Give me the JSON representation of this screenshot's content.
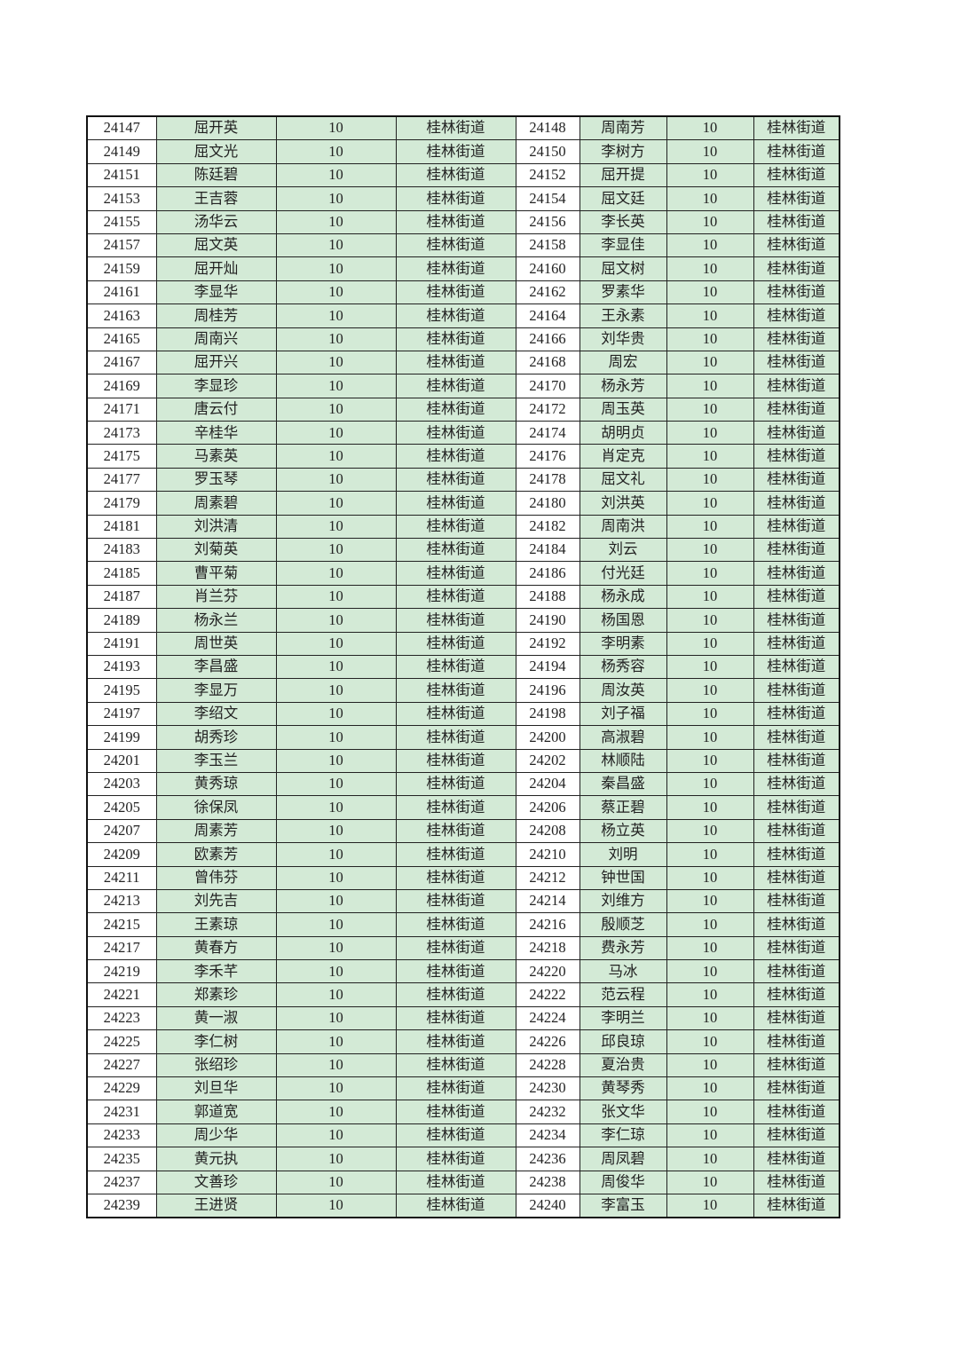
{
  "colors": {
    "cell_green": "#d3ead6",
    "cell_white": "#ffffff",
    "border": "#222222"
  },
  "rows": [
    {
      "left": [
        "24147",
        "屈开英",
        "10",
        "桂林街道"
      ],
      "right": [
        "24148",
        "周南芳",
        "10",
        "桂林街道"
      ]
    },
    {
      "left": [
        "24149",
        "屈文光",
        "10",
        "桂林街道"
      ],
      "right": [
        "24150",
        "李树方",
        "10",
        "桂林街道"
      ]
    },
    {
      "left": [
        "24151",
        "陈廷碧",
        "10",
        "桂林街道"
      ],
      "right": [
        "24152",
        "屈开提",
        "10",
        "桂林街道"
      ]
    },
    {
      "left": [
        "24153",
        "王吉蓉",
        "10",
        "桂林街道"
      ],
      "right": [
        "24154",
        "屈文廷",
        "10",
        "桂林街道"
      ]
    },
    {
      "left": [
        "24155",
        "汤华云",
        "10",
        "桂林街道"
      ],
      "right": [
        "24156",
        "李长英",
        "10",
        "桂林街道"
      ]
    },
    {
      "left": [
        "24157",
        "屈文英",
        "10",
        "桂林街道"
      ],
      "right": [
        "24158",
        "李显佳",
        "10",
        "桂林街道"
      ]
    },
    {
      "left": [
        "24159",
        "屈开灿",
        "10",
        "桂林街道"
      ],
      "right": [
        "24160",
        "屈文树",
        "10",
        "桂林街道"
      ]
    },
    {
      "left": [
        "24161",
        "李显华",
        "10",
        "桂林街道"
      ],
      "right": [
        "24162",
        "罗素华",
        "10",
        "桂林街道"
      ]
    },
    {
      "left": [
        "24163",
        "周桂芳",
        "10",
        "桂林街道"
      ],
      "right": [
        "24164",
        "王永素",
        "10",
        "桂林街道"
      ]
    },
    {
      "left": [
        "24165",
        "周南兴",
        "10",
        "桂林街道"
      ],
      "right": [
        "24166",
        "刘华贵",
        "10",
        "桂林街道"
      ]
    },
    {
      "left": [
        "24167",
        "屈开兴",
        "10",
        "桂林街道"
      ],
      "right": [
        "24168",
        "周宏",
        "10",
        "桂林街道"
      ]
    },
    {
      "left": [
        "24169",
        "李显珍",
        "10",
        "桂林街道"
      ],
      "right": [
        "24170",
        "杨永芳",
        "10",
        "桂林街道"
      ]
    },
    {
      "left": [
        "24171",
        "唐云付",
        "10",
        "桂林街道"
      ],
      "right": [
        "24172",
        "周玉英",
        "10",
        "桂林街道"
      ]
    },
    {
      "left": [
        "24173",
        "辛桂华",
        "10",
        "桂林街道"
      ],
      "right": [
        "24174",
        "胡明贞",
        "10",
        "桂林街道"
      ]
    },
    {
      "left": [
        "24175",
        "马素英",
        "10",
        "桂林街道"
      ],
      "right": [
        "24176",
        "肖定克",
        "10",
        "桂林街道"
      ]
    },
    {
      "left": [
        "24177",
        "罗玉琴",
        "10",
        "桂林街道"
      ],
      "right": [
        "24178",
        "屈文礼",
        "10",
        "桂林街道"
      ]
    },
    {
      "left": [
        "24179",
        "周素碧",
        "10",
        "桂林街道"
      ],
      "right": [
        "24180",
        "刘洪英",
        "10",
        "桂林街道"
      ]
    },
    {
      "left": [
        "24181",
        "刘洪清",
        "10",
        "桂林街道"
      ],
      "right": [
        "24182",
        "周南洪",
        "10",
        "桂林街道"
      ]
    },
    {
      "left": [
        "24183",
        "刘菊英",
        "10",
        "桂林街道"
      ],
      "right": [
        "24184",
        "刘云",
        "10",
        "桂林街道"
      ]
    },
    {
      "left": [
        "24185",
        "曹平菊",
        "10",
        "桂林街道"
      ],
      "right": [
        "24186",
        "付光廷",
        "10",
        "桂林街道"
      ]
    },
    {
      "left": [
        "24187",
        "肖兰芬",
        "10",
        "桂林街道"
      ],
      "right": [
        "24188",
        "杨永成",
        "10",
        "桂林街道"
      ]
    },
    {
      "left": [
        "24189",
        "杨永兰",
        "10",
        "桂林街道"
      ],
      "right": [
        "24190",
        "杨国恩",
        "10",
        "桂林街道"
      ]
    },
    {
      "left": [
        "24191",
        "周世英",
        "10",
        "桂林街道"
      ],
      "right": [
        "24192",
        "李明素",
        "10",
        "桂林街道"
      ]
    },
    {
      "left": [
        "24193",
        "李昌盛",
        "10",
        "桂林街道"
      ],
      "right": [
        "24194",
        "杨秀容",
        "10",
        "桂林街道"
      ]
    },
    {
      "left": [
        "24195",
        "李显万",
        "10",
        "桂林街道"
      ],
      "right": [
        "24196",
        "周汝英",
        "10",
        "桂林街道"
      ]
    },
    {
      "left": [
        "24197",
        "李绍文",
        "10",
        "桂林街道"
      ],
      "right": [
        "24198",
        "刘子福",
        "10",
        "桂林街道"
      ]
    },
    {
      "left": [
        "24199",
        "胡秀珍",
        "10",
        "桂林街道"
      ],
      "right": [
        "24200",
        "高淑碧",
        "10",
        "桂林街道"
      ]
    },
    {
      "left": [
        "24201",
        "李玉兰",
        "10",
        "桂林街道"
      ],
      "right": [
        "24202",
        "林顺陆",
        "10",
        "桂林街道"
      ]
    },
    {
      "left": [
        "24203",
        "黄秀琼",
        "10",
        "桂林街道"
      ],
      "right": [
        "24204",
        "秦昌盛",
        "10",
        "桂林街道"
      ]
    },
    {
      "left": [
        "24205",
        "徐保凤",
        "10",
        "桂林街道"
      ],
      "right": [
        "24206",
        "蔡正碧",
        "10",
        "桂林街道"
      ]
    },
    {
      "left": [
        "24207",
        "周素芳",
        "10",
        "桂林街道"
      ],
      "right": [
        "24208",
        "杨立英",
        "10",
        "桂林街道"
      ]
    },
    {
      "left": [
        "24209",
        "欧素芳",
        "10",
        "桂林街道"
      ],
      "right": [
        "24210",
        "刘明",
        "10",
        "桂林街道"
      ]
    },
    {
      "left": [
        "24211",
        "曾伟芬",
        "10",
        "桂林街道"
      ],
      "right": [
        "24212",
        "钟世国",
        "10",
        "桂林街道"
      ]
    },
    {
      "left": [
        "24213",
        "刘先吉",
        "10",
        "桂林街道"
      ],
      "right": [
        "24214",
        "刘维方",
        "10",
        "桂林街道"
      ]
    },
    {
      "left": [
        "24215",
        "王素琼",
        "10",
        "桂林街道"
      ],
      "right": [
        "24216",
        "殷顺芝",
        "10",
        "桂林街道"
      ]
    },
    {
      "left": [
        "24217",
        "黄春方",
        "10",
        "桂林街道"
      ],
      "right": [
        "24218",
        "费永芳",
        "10",
        "桂林街道"
      ]
    },
    {
      "left": [
        "24219",
        "李禾芊",
        "10",
        "桂林街道"
      ],
      "right": [
        "24220",
        "马冰",
        "10",
        "桂林街道"
      ]
    },
    {
      "left": [
        "24221",
        "郑素珍",
        "10",
        "桂林街道"
      ],
      "right": [
        "24222",
        "范云程",
        "10",
        "桂林街道"
      ]
    },
    {
      "left": [
        "24223",
        "黄一淑",
        "10",
        "桂林街道"
      ],
      "right": [
        "24224",
        "李明兰",
        "10",
        "桂林街道"
      ]
    },
    {
      "left": [
        "24225",
        "李仁树",
        "10",
        "桂林街道"
      ],
      "right": [
        "24226",
        "邱良琼",
        "10",
        "桂林街道"
      ]
    },
    {
      "left": [
        "24227",
        "张绍珍",
        "10",
        "桂林街道"
      ],
      "right": [
        "24228",
        "夏治贵",
        "10",
        "桂林街道"
      ]
    },
    {
      "left": [
        "24229",
        "刘旦华",
        "10",
        "桂林街道"
      ],
      "right": [
        "24230",
        "黄琴秀",
        "10",
        "桂林街道"
      ]
    },
    {
      "left": [
        "24231",
        "郭道宽",
        "10",
        "桂林街道"
      ],
      "right": [
        "24232",
        "张文华",
        "10",
        "桂林街道"
      ]
    },
    {
      "left": [
        "24233",
        "周少华",
        "10",
        "桂林街道"
      ],
      "right": [
        "24234",
        "李仁琼",
        "10",
        "桂林街道"
      ]
    },
    {
      "left": [
        "24235",
        "黄元执",
        "10",
        "桂林街道"
      ],
      "right": [
        "24236",
        "周凤碧",
        "10",
        "桂林街道"
      ]
    },
    {
      "left": [
        "24237",
        "文善珍",
        "10",
        "桂林街道"
      ],
      "right": [
        "24238",
        "周俊华",
        "10",
        "桂林街道"
      ]
    },
    {
      "left": [
        "24239",
        "王进贤",
        "10",
        "桂林街道"
      ],
      "right": [
        "24240",
        "李富玉",
        "10",
        "桂林街道"
      ]
    }
  ]
}
